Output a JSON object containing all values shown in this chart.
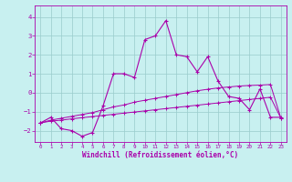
{
  "xlabel": "Windchill (Refroidissement éolien,°C)",
  "background_color": "#c8f0f0",
  "line_color": "#aa00aa",
  "grid_color": "#99cccc",
  "xlim": [
    -0.5,
    23.5
  ],
  "ylim": [
    -2.6,
    4.6
  ],
  "yticks": [
    -2,
    -1,
    0,
    1,
    2,
    3,
    4
  ],
  "xticks": [
    0,
    1,
    2,
    3,
    4,
    5,
    6,
    7,
    8,
    9,
    10,
    11,
    12,
    13,
    14,
    15,
    16,
    17,
    18,
    19,
    20,
    21,
    22,
    23
  ],
  "line1_x": [
    0,
    1,
    2,
    3,
    4,
    5,
    6,
    7,
    8,
    9,
    10,
    11,
    12,
    13,
    14,
    15,
    16,
    17,
    18,
    19,
    20,
    21,
    22,
    23
  ],
  "line1_y": [
    -1.6,
    -1.3,
    -1.9,
    -2.0,
    -2.3,
    -2.1,
    -0.7,
    1.0,
    1.0,
    0.8,
    2.8,
    3.0,
    3.8,
    2.0,
    1.9,
    1.1,
    1.9,
    0.6,
    -0.2,
    -0.3,
    -0.9,
    0.2,
    -1.3,
    -1.3
  ],
  "line2_x": [
    0,
    1,
    2,
    3,
    4,
    5,
    6,
    7,
    8,
    9,
    10,
    11,
    12,
    13,
    14,
    15,
    16,
    17,
    18,
    19,
    20,
    21,
    22,
    23
  ],
  "line2_y": [
    -1.6,
    -1.45,
    -1.35,
    -1.25,
    -1.15,
    -1.05,
    -0.9,
    -0.75,
    -0.65,
    -0.5,
    -0.4,
    -0.3,
    -0.2,
    -0.1,
    0.0,
    0.1,
    0.18,
    0.25,
    0.3,
    0.35,
    0.38,
    0.4,
    0.43,
    -1.35
  ],
  "line3_x": [
    0,
    1,
    2,
    3,
    4,
    5,
    6,
    7,
    8,
    9,
    10,
    11,
    12,
    13,
    14,
    15,
    16,
    17,
    18,
    19,
    20,
    21,
    22,
    23
  ],
  "line3_y": [
    -1.6,
    -1.5,
    -1.45,
    -1.38,
    -1.32,
    -1.26,
    -1.2,
    -1.14,
    -1.08,
    -1.02,
    -0.96,
    -0.9,
    -0.84,
    -0.78,
    -0.72,
    -0.66,
    -0.6,
    -0.54,
    -0.48,
    -0.42,
    -0.36,
    -0.3,
    -0.24,
    -1.35
  ]
}
